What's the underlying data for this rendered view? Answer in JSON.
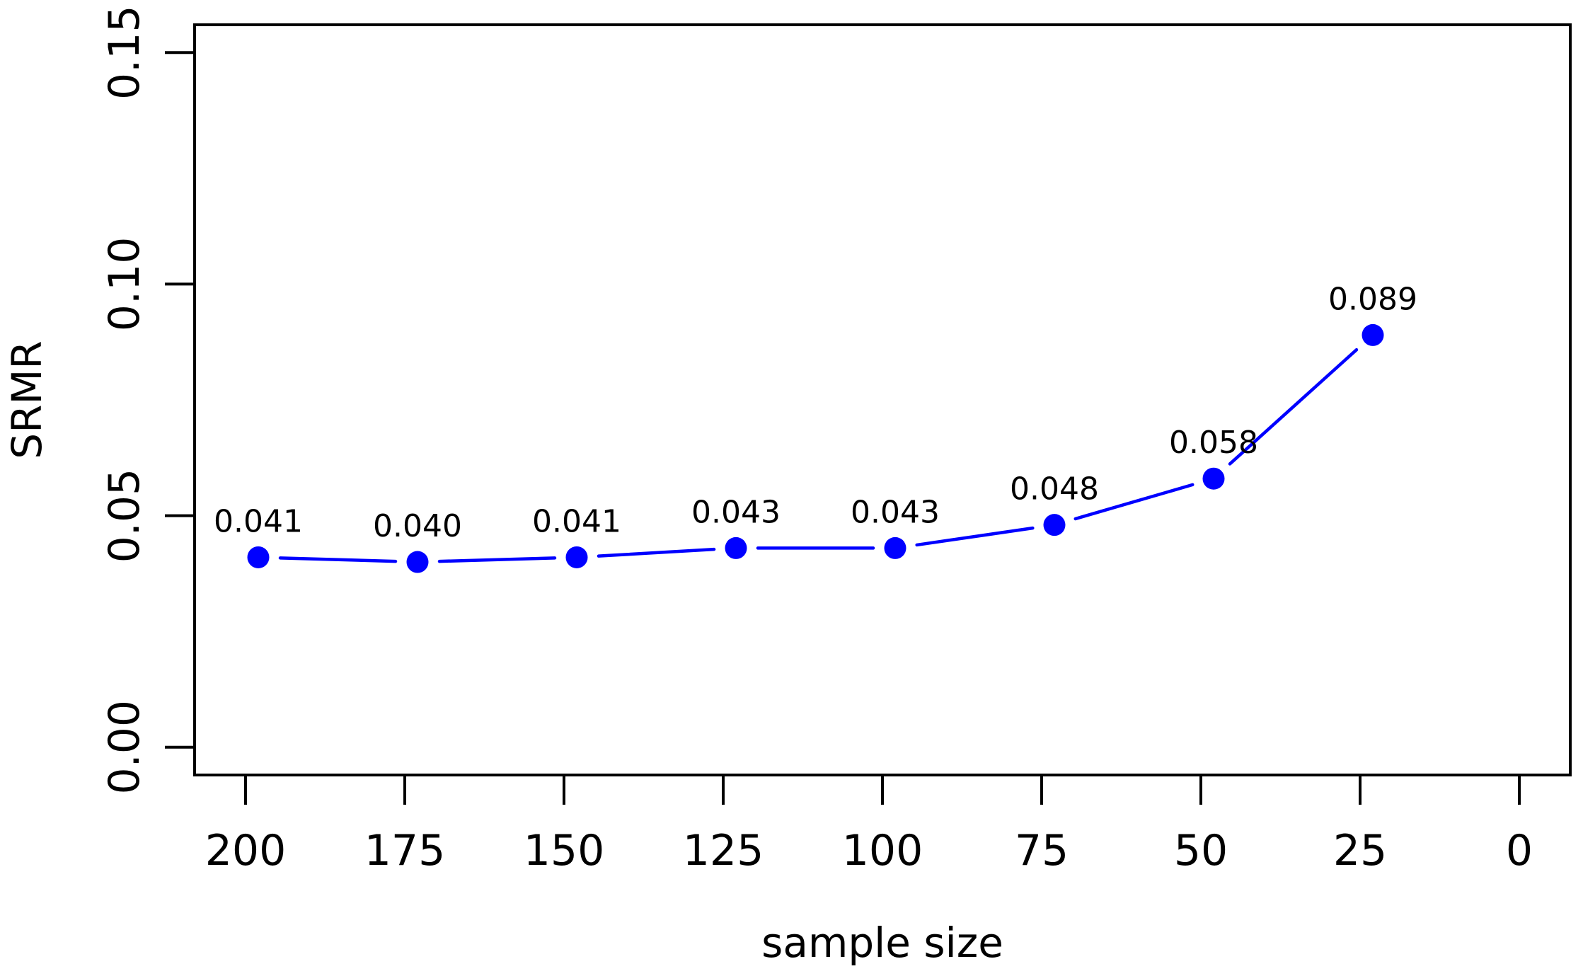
{
  "chart_data": {
    "type": "line",
    "title": "",
    "xlabel": "sample size",
    "ylabel": "SRMR",
    "x": [
      198,
      173,
      148,
      123,
      98,
      73,
      48,
      23
    ],
    "values": [
      0.041,
      0.04,
      0.041,
      0.043,
      0.043,
      0.048,
      0.058,
      0.089
    ],
    "point_labels": [
      "0.041",
      "0.040",
      "0.041",
      "0.043",
      "0.043",
      "0.048",
      "0.058",
      "0.089"
    ],
    "x_ticks": [
      200,
      175,
      150,
      125,
      100,
      75,
      50,
      25,
      0
    ],
    "x_tick_labels": [
      "200",
      "175",
      "150",
      "125",
      "100",
      "75",
      "50",
      "25",
      "0"
    ],
    "y_ticks": [
      0.0,
      0.05,
      0.1,
      0.15
    ],
    "y_tick_labels": [
      "0.00",
      "0.05",
      "0.10",
      "0.15"
    ],
    "xlim": [
      208,
      -8
    ],
    "ylim": [
      -0.006,
      0.156
    ],
    "x_axis_reversed": true,
    "grid": false,
    "legend_position": "none",
    "series_color": "#0000ff",
    "axis_color": "#000000",
    "background_color": "#ffffff",
    "marker": "filled-circle",
    "line_type": "points-and-segments"
  }
}
